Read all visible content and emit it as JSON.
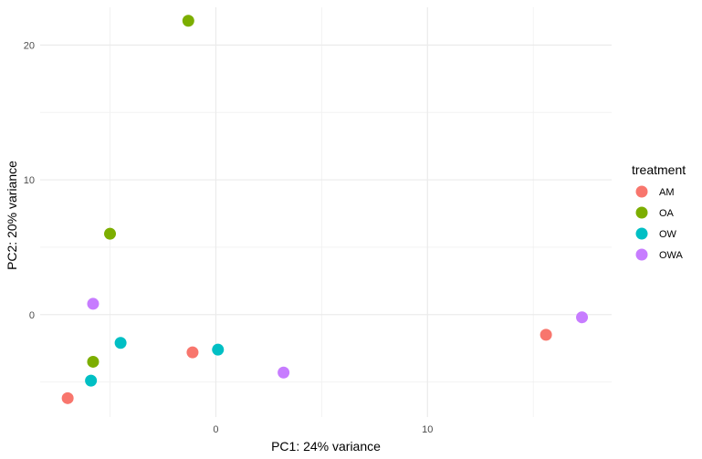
{
  "chart_data": {
    "type": "scatter",
    "title": "",
    "xlabel": "PC1: 24% variance",
    "ylabel": "PC2: 20% variance",
    "xlim": [
      -8.3,
      18.7
    ],
    "ylim": [
      -7.6,
      22.8
    ],
    "xticks": [
      0,
      10
    ],
    "yticks": [
      0,
      10,
      20
    ],
    "grid": true,
    "legend": {
      "title": "treatment",
      "position": "right"
    },
    "series": [
      {
        "name": "AM",
        "color": "#F8766D",
        "points": [
          [
            -7.0,
            -6.2
          ],
          [
            -1.1,
            -2.8
          ],
          [
            15.6,
            -1.5
          ]
        ]
      },
      {
        "name": "OA",
        "color": "#7CAE00",
        "points": [
          [
            -1.3,
            21.8
          ],
          [
            -5.0,
            6.0
          ],
          [
            -5.8,
            -3.5
          ]
        ]
      },
      {
        "name": "OW",
        "color": "#00BFC4",
        "points": [
          [
            -4.5,
            -2.1
          ],
          [
            0.1,
            -2.6
          ],
          [
            -5.9,
            -4.9
          ]
        ]
      },
      {
        "name": "OWA",
        "color": "#C77CFF",
        "points": [
          [
            -5.8,
            0.8
          ],
          [
            3.2,
            -4.3
          ],
          [
            17.3,
            -0.2
          ]
        ]
      }
    ]
  }
}
